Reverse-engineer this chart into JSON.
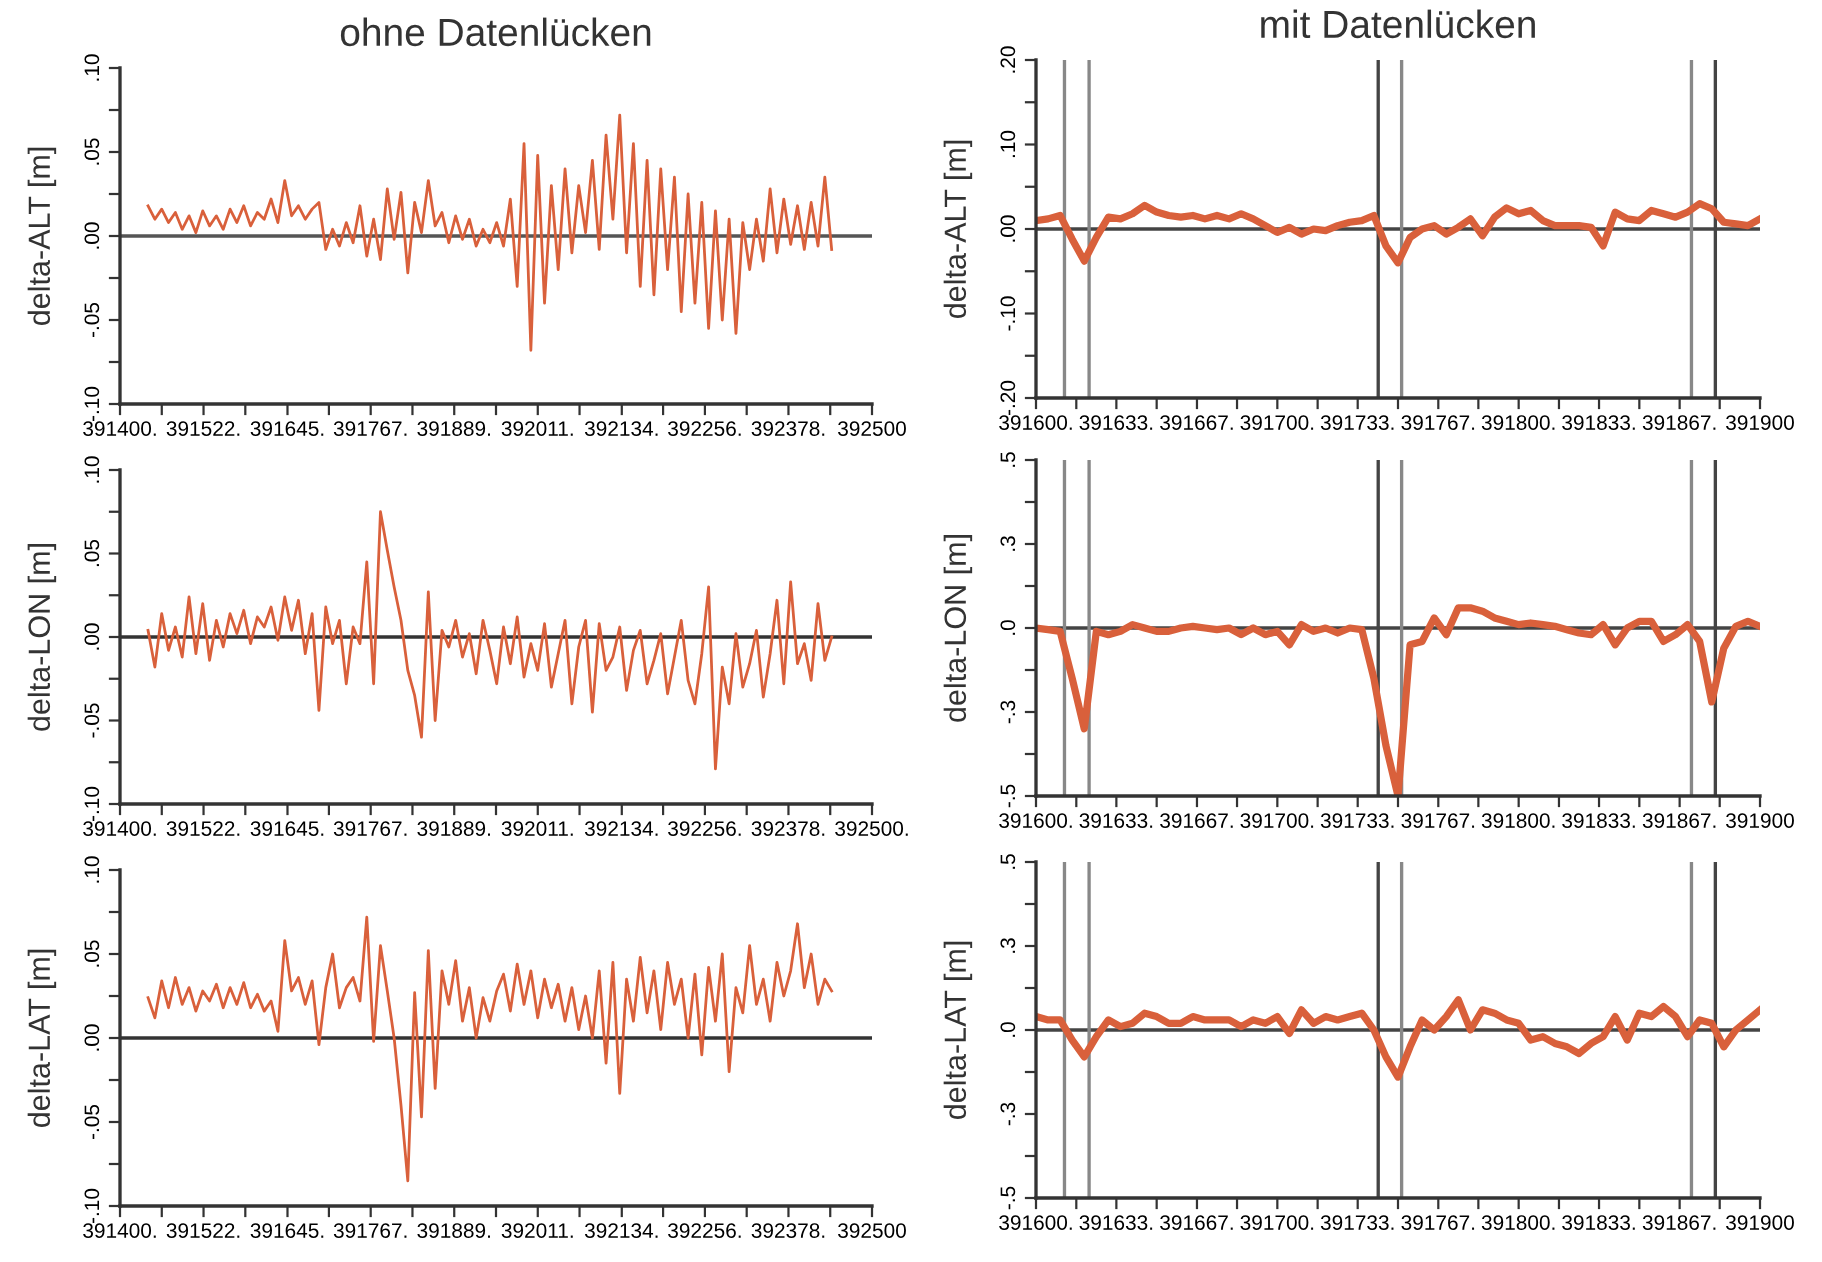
{
  "chart_data": [
    {
      "type": "line",
      "title": "ohne Datenlücken",
      "ylabel": "delta-ALT [m]",
      "xlim": [
        391400,
        392500
      ],
      "ylim": [
        -0.1,
        0.1
      ],
      "xticks": [
        {
          "value": 391400,
          "label": "391400."
        },
        {
          "value": 391461.1,
          "label": null
        },
        {
          "value": 391522.2,
          "label": "391522."
        },
        {
          "value": 391583.3,
          "label": null
        },
        {
          "value": 391645,
          "label": "391645."
        },
        {
          "value": 391705.6,
          "label": null
        },
        {
          "value": 391766.7,
          "label": "391767."
        },
        {
          "value": 391827.8,
          "label": null
        },
        {
          "value": 391888.9,
          "label": "391889."
        },
        {
          "value": 391950,
          "label": null
        },
        {
          "value": 392011.1,
          "label": "392011."
        },
        {
          "value": 392072.2,
          "label": null
        },
        {
          "value": 392134,
          "label": "392134."
        },
        {
          "value": 392194.4,
          "label": null
        },
        {
          "value": 392255.6,
          "label": "392256."
        },
        {
          "value": 392316.7,
          "label": null
        },
        {
          "value": 392377.8,
          "label": "392378."
        },
        {
          "value": 392438.9,
          "label": null
        },
        {
          "value": 392500,
          "label": "392500"
        }
      ],
      "yticks": [
        {
          "value": -0.1,
          "label": "-.10"
        },
        {
          "value": -0.075,
          "label": null
        },
        {
          "value": -0.05,
          "label": "-.05"
        },
        {
          "value": -0.025,
          "label": null
        },
        {
          "value": 0,
          "label": ".00"
        },
        {
          "value": 0.025,
          "label": null
        },
        {
          "value": 0.05,
          "label": ".05"
        },
        {
          "value": 0.075,
          "label": null
        },
        {
          "value": 0.1,
          "label": ".10"
        }
      ],
      "ref_lines": [
        {
          "axis": "y",
          "value": 0,
          "color": "#555555"
        }
      ],
      "grid": false,
      "legend": false,
      "x": [
        391441,
        391451,
        391461,
        391471,
        391481,
        391491,
        391501,
        391511,
        391521,
        391531,
        391541,
        391551,
        391561,
        391571,
        391581,
        391591,
        391601,
        391611,
        391621,
        391631,
        391641,
        391651,
        391661,
        391671,
        391681,
        391691,
        391701,
        391711,
        391721,
        391731,
        391741,
        391751,
        391761,
        391771,
        391781,
        391791,
        391801,
        391811,
        391821,
        391831,
        391841,
        391851,
        391861,
        391871,
        391881,
        391891,
        391901,
        391911,
        391921,
        391931,
        391941,
        391951,
        391961,
        391971,
        391981,
        391991,
        392001,
        392011,
        392021,
        392031,
        392041,
        392051,
        392061,
        392071,
        392081,
        392091,
        392101,
        392111,
        392121,
        392131,
        392141,
        392151,
        392161,
        392171,
        392181,
        392191,
        392201,
        392211,
        392221,
        392231,
        392241,
        392251,
        392261,
        392271,
        392281,
        392291,
        392301,
        392311,
        392321,
        392331,
        392341,
        392351,
        392361,
        392371,
        392381,
        392391,
        392401,
        392411,
        392421,
        392431,
        392441
      ],
      "series": [
        {
          "color": "#d9603b",
          "values": [
            0.018,
            0.01,
            0.016,
            0.008,
            0.014,
            0.004,
            0.012,
            0.002,
            0.015,
            0.006,
            0.012,
            0.004,
            0.016,
            0.008,
            0.018,
            0.006,
            0.014,
            0.01,
            0.022,
            0.008,
            0.033,
            0.012,
            0.018,
            0.01,
            0.016,
            0.02,
            -0.008,
            0.004,
            -0.006,
            0.008,
            -0.004,
            0.018,
            -0.012,
            0.01,
            -0.014,
            0.028,
            -0.002,
            0.026,
            -0.022,
            0.02,
            0.002,
            0.033,
            0.006,
            0.014,
            -0.004,
            0.012,
            -0.002,
            0.01,
            -0.006,
            0.004,
            -0.004,
            0.008,
            -0.006,
            0.022,
            -0.03,
            0.055,
            -0.068,
            0.048,
            -0.04,
            0.03,
            -0.02,
            0.04,
            -0.01,
            0.03,
            0.002,
            0.045,
            -0.008,
            0.06,
            0.01,
            0.072,
            -0.01,
            0.055,
            -0.03,
            0.045,
            -0.035,
            0.04,
            -0.02,
            0.035,
            -0.045,
            0.025,
            -0.04,
            0.02,
            -0.055,
            0.015,
            -0.05,
            0.01,
            -0.058,
            0.008,
            -0.02,
            0.01,
            -0.015,
            0.028,
            -0.01,
            0.022,
            -0.005,
            0.018,
            -0.008,
            0.02,
            -0.006,
            0.035,
            -0.008
          ]
        }
      ]
    },
    {
      "type": "line",
      "title": "mit Datenlücken",
      "ylabel": "delta-ALT [m]",
      "xlim": [
        391600,
        391900
      ],
      "ylim": [
        -0.2,
        0.2
      ],
      "xticks": [
        {
          "value": 391600,
          "label": "391600."
        },
        {
          "value": 391616.7,
          "label": null
        },
        {
          "value": 391633.3,
          "label": "391633."
        },
        {
          "value": 391650,
          "label": null
        },
        {
          "value": 391666.7,
          "label": "391667."
        },
        {
          "value": 391683.3,
          "label": null
        },
        {
          "value": 391700,
          "label": "391700."
        },
        {
          "value": 391716.7,
          "label": null
        },
        {
          "value": 391733.3,
          "label": "391733."
        },
        {
          "value": 391750,
          "label": null
        },
        {
          "value": 391766.7,
          "label": "391767."
        },
        {
          "value": 391783.3,
          "label": null
        },
        {
          "value": 391800,
          "label": "391800."
        },
        {
          "value": 391816.7,
          "label": null
        },
        {
          "value": 391833.3,
          "label": "391833."
        },
        {
          "value": 391850,
          "label": null
        },
        {
          "value": 391866.7,
          "label": "391867."
        },
        {
          "value": 391883.3,
          "label": null
        },
        {
          "value": 391900,
          "label": "391900"
        }
      ],
      "yticks": [
        {
          "value": -0.2,
          "label": "-.20"
        },
        {
          "value": -0.15,
          "label": null
        },
        {
          "value": -0.1,
          "label": "-.10"
        },
        {
          "value": -0.05,
          "label": null
        },
        {
          "value": 0,
          "label": ".00"
        },
        {
          "value": 0.05,
          "label": null
        },
        {
          "value": 0.1,
          "label": ".10"
        },
        {
          "value": 0.15,
          "label": null
        },
        {
          "value": 0.2,
          "label": ".20"
        }
      ],
      "ref_lines": [
        {
          "axis": "y",
          "value": 0,
          "color": "#444444"
        },
        {
          "axis": "x",
          "value": 391611.8,
          "color": "#888888"
        },
        {
          "axis": "x",
          "value": 391622,
          "color": "#888888"
        },
        {
          "axis": "x",
          "value": 391741.8,
          "color": "#444444"
        },
        {
          "axis": "x",
          "value": 391751.5,
          "color": "#888888"
        },
        {
          "axis": "x",
          "value": 391871.6,
          "color": "#888888"
        },
        {
          "axis": "x",
          "value": 391881.5,
          "color": "#444444"
        }
      ],
      "grid": false,
      "legend": false,
      "x": [
        391600,
        391605,
        391610,
        391615,
        391620,
        391625,
        391630,
        391635,
        391640,
        391645,
        391650,
        391655,
        391660,
        391665,
        391670,
        391675,
        391680,
        391685,
        391690,
        391695,
        391700,
        391705,
        391710,
        391715,
        391720,
        391725,
        391730,
        391735,
        391740,
        391745,
        391750,
        391755,
        391760,
        391765,
        391770,
        391775,
        391780,
        391785,
        391790,
        391795,
        391800,
        391805,
        391810,
        391815,
        391820,
        391825,
        391830,
        391835,
        391840,
        391845,
        391850,
        391855,
        391860,
        391865,
        391870,
        391875,
        391880,
        391885,
        391890,
        391895,
        391900
      ],
      "series": [
        {
          "color": "#d9603b",
          "values": [
            0.01,
            0.012,
            0.016,
            -0.012,
            -0.038,
            -0.01,
            0.014,
            0.012,
            0.018,
            0.028,
            0.02,
            0.016,
            0.014,
            0.016,
            0.012,
            0.016,
            0.012,
            0.018,
            0.012,
            0.004,
            -0.004,
            0.002,
            -0.006,
            0.0,
            -0.002,
            0.004,
            0.008,
            0.01,
            0.016,
            -0.02,
            -0.04,
            -0.01,
            0.0,
            0.004,
            -0.006,
            0.002,
            0.012,
            -0.008,
            0.014,
            0.025,
            0.018,
            0.022,
            0.01,
            0.004,
            0.004,
            0.004,
            0.002,
            -0.02,
            0.02,
            0.012,
            0.01,
            0.022,
            0.018,
            0.014,
            0.02,
            0.03,
            0.024,
            0.008,
            0.006,
            0.004,
            0.012
          ]
        }
      ]
    },
    {
      "type": "line",
      "ylabel": "delta-LON [m]",
      "xlim": [
        391400,
        392500
      ],
      "ylim": [
        -0.1,
        0.1
      ],
      "xticks": [
        {
          "value": 391400,
          "label": "391400."
        },
        {
          "value": 391461.1,
          "label": null
        },
        {
          "value": 391522.2,
          "label": "391522."
        },
        {
          "value": 391583.3,
          "label": null
        },
        {
          "value": 391645,
          "label": "391645."
        },
        {
          "value": 391705.6,
          "label": null
        },
        {
          "value": 391766.7,
          "label": "391767."
        },
        {
          "value": 391827.8,
          "label": null
        },
        {
          "value": 391888.9,
          "label": "391889."
        },
        {
          "value": 391950,
          "label": null
        },
        {
          "value": 392011.1,
          "label": "392011."
        },
        {
          "value": 392072.2,
          "label": null
        },
        {
          "value": 392134,
          "label": "392134."
        },
        {
          "value": 392194.4,
          "label": null
        },
        {
          "value": 392255.6,
          "label": "392256."
        },
        {
          "value": 392316.7,
          "label": null
        },
        {
          "value": 392377.8,
          "label": "392378."
        },
        {
          "value": 392438.9,
          "label": null
        },
        {
          "value": 392500,
          "label": "392500."
        }
      ],
      "yticks": [
        {
          "value": -0.1,
          "label": "-.10"
        },
        {
          "value": -0.075,
          "label": null
        },
        {
          "value": -0.05,
          "label": "-.05"
        },
        {
          "value": -0.025,
          "label": null
        },
        {
          "value": 0,
          "label": ".00"
        },
        {
          "value": 0.025,
          "label": null
        },
        {
          "value": 0.05,
          "label": ".05"
        },
        {
          "value": 0.075,
          "label": null
        },
        {
          "value": 0.1,
          "label": ".10"
        }
      ],
      "ref_lines": [
        {
          "axis": "y",
          "value": 0,
          "color": "#333333"
        }
      ],
      "grid": false,
      "legend": false,
      "x": [
        391441,
        391451,
        391461,
        391471,
        391481,
        391491,
        391501,
        391511,
        391521,
        391531,
        391541,
        391551,
        391561,
        391571,
        391581,
        391591,
        391601,
        391611,
        391621,
        391631,
        391641,
        391651,
        391661,
        391671,
        391681,
        391691,
        391701,
        391711,
        391721,
        391731,
        391741,
        391751,
        391761,
        391771,
        391781,
        391791,
        391801,
        391811,
        391821,
        391831,
        391841,
        391851,
        391861,
        391871,
        391881,
        391891,
        391901,
        391911,
        391921,
        391931,
        391941,
        391951,
        391961,
        391971,
        391981,
        391991,
        392001,
        392011,
        392021,
        392031,
        392041,
        392051,
        392061,
        392071,
        392081,
        392091,
        392101,
        392111,
        392121,
        392131,
        392141,
        392151,
        392161,
        392171,
        392181,
        392191,
        392201,
        392211,
        392221,
        392231,
        392241,
        392251,
        392261,
        392271,
        392281,
        392291,
        392301,
        392311,
        392321,
        392331,
        392341,
        392351,
        392361,
        392371,
        392381,
        392391,
        392401,
        392411,
        392421,
        392431,
        392441
      ],
      "series": [
        {
          "color": "#d9603b",
          "values": [
            0.004,
            -0.018,
            0.014,
            -0.008,
            0.006,
            -0.012,
            0.024,
            -0.01,
            0.02,
            -0.014,
            0.01,
            -0.006,
            0.014,
            0.002,
            0.016,
            -0.004,
            0.012,
            0.006,
            0.018,
            -0.002,
            0.024,
            0.004,
            0.022,
            -0.01,
            0.014,
            -0.044,
            0.018,
            -0.004,
            0.01,
            -0.028,
            0.006,
            -0.004,
            0.045,
            -0.028,
            0.075,
            0.052,
            0.03,
            0.01,
            -0.02,
            -0.035,
            -0.06,
            0.027,
            -0.05,
            0.004,
            -0.006,
            0.01,
            -0.012,
            0.002,
            -0.022,
            0.01,
            -0.008,
            -0.028,
            0.006,
            -0.016,
            0.012,
            -0.024,
            -0.004,
            -0.02,
            0.008,
            -0.03,
            -0.01,
            0.01,
            -0.04,
            -0.006,
            0.01,
            -0.045,
            0.008,
            -0.02,
            -0.012,
            0.006,
            -0.032,
            -0.008,
            0.004,
            -0.028,
            -0.014,
            0.002,
            -0.034,
            -0.012,
            0.01,
            -0.026,
            -0.04,
            -0.01,
            0.03,
            -0.079,
            -0.018,
            -0.04,
            0.002,
            -0.03,
            -0.016,
            0.004,
            -0.036,
            -0.01,
            0.022,
            -0.028,
            0.033,
            -0.016,
            -0.004,
            -0.026,
            0.02,
            -0.014,
            0.0
          ]
        }
      ]
    },
    {
      "type": "line",
      "ylabel": "delta-LON [m]",
      "xlim": [
        391600,
        391900
      ],
      "ylim": [
        -0.5,
        0.5
      ],
      "xticks": [
        {
          "value": 391600,
          "label": "391600."
        },
        {
          "value": 391616.7,
          "label": null
        },
        {
          "value": 391633.3,
          "label": "391633."
        },
        {
          "value": 391650,
          "label": null
        },
        {
          "value": 391666.7,
          "label": "391667."
        },
        {
          "value": 391683.3,
          "label": null
        },
        {
          "value": 391700,
          "label": "391700."
        },
        {
          "value": 391716.7,
          "label": null
        },
        {
          "value": 391733.3,
          "label": "391733."
        },
        {
          "value": 391750,
          "label": null
        },
        {
          "value": 391766.7,
          "label": "391767."
        },
        {
          "value": 391783.3,
          "label": null
        },
        {
          "value": 391800,
          "label": "391800."
        },
        {
          "value": 391816.7,
          "label": null
        },
        {
          "value": 391833.3,
          "label": "391833."
        },
        {
          "value": 391850,
          "label": null
        },
        {
          "value": 391866.7,
          "label": "391867."
        },
        {
          "value": 391883.3,
          "label": null
        },
        {
          "value": 391900,
          "label": "391900"
        }
      ],
      "yticks": [
        {
          "value": -0.5,
          "label": "-.5"
        },
        {
          "value": -0.375,
          "label": null
        },
        {
          "value": -0.25,
          "label": "-.3"
        },
        {
          "value": -0.125,
          "label": null
        },
        {
          "value": 0,
          "label": ".0"
        },
        {
          "value": 0.125,
          "label": null
        },
        {
          "value": 0.25,
          "label": ".3"
        },
        {
          "value": 0.375,
          "label": null
        },
        {
          "value": 0.5,
          "label": ".5"
        }
      ],
      "ref_lines": [
        {
          "axis": "y",
          "value": 0,
          "color": "#444444"
        },
        {
          "axis": "x",
          "value": 391611.8,
          "color": "#888888"
        },
        {
          "axis": "x",
          "value": 391622,
          "color": "#888888"
        },
        {
          "axis": "x",
          "value": 391741.8,
          "color": "#444444"
        },
        {
          "axis": "x",
          "value": 391751.5,
          "color": "#888888"
        },
        {
          "axis": "x",
          "value": 391871.6,
          "color": "#888888"
        },
        {
          "axis": "x",
          "value": 391881.5,
          "color": "#444444"
        }
      ],
      "grid": false,
      "legend": false,
      "x": [
        391600,
        391605,
        391610,
        391615,
        391620,
        391625,
        391630,
        391635,
        391640,
        391645,
        391650,
        391655,
        391660,
        391665,
        391670,
        391675,
        391680,
        391685,
        391690,
        391695,
        391700,
        391705,
        391710,
        391715,
        391720,
        391725,
        391730,
        391735,
        391740,
        391745,
        391750,
        391755,
        391760,
        391765,
        391770,
        391775,
        391780,
        391785,
        391790,
        391795,
        391800,
        391805,
        391810,
        391815,
        391820,
        391825,
        391830,
        391835,
        391840,
        391845,
        391850,
        391855,
        391860,
        391865,
        391870,
        391875,
        391880,
        391885,
        391890,
        391895,
        391900
      ],
      "series": [
        {
          "color": "#d9603b",
          "values": [
            0.0,
            -0.005,
            -0.01,
            -0.15,
            -0.3,
            -0.01,
            -0.02,
            -0.01,
            0.01,
            0.0,
            -0.01,
            -0.01,
            0.0,
            0.005,
            0.0,
            -0.005,
            0.0,
            -0.02,
            0.0,
            -0.02,
            -0.01,
            -0.05,
            0.01,
            -0.01,
            0.0,
            -0.015,
            0.0,
            -0.005,
            -0.15,
            -0.35,
            -0.5,
            -0.05,
            -0.04,
            0.03,
            -0.02,
            0.06,
            0.06,
            0.05,
            0.03,
            0.02,
            0.01,
            0.015,
            0.01,
            0.005,
            -0.005,
            -0.015,
            -0.02,
            0.01,
            -0.05,
            0.0,
            0.02,
            0.02,
            -0.04,
            -0.02,
            0.01,
            -0.04,
            -0.22,
            -0.06,
            0.005,
            0.02,
            0.005
          ]
        }
      ]
    },
    {
      "type": "line",
      "ylabel": "delta-LAT [m]",
      "xlim": [
        391400,
        392500
      ],
      "ylim": [
        -0.1,
        0.1
      ],
      "xticks": [
        {
          "value": 391400,
          "label": "391400."
        },
        {
          "value": 391461.1,
          "label": null
        },
        {
          "value": 391522.2,
          "label": "391522."
        },
        {
          "value": 391583.3,
          "label": null
        },
        {
          "value": 391645,
          "label": "391645."
        },
        {
          "value": 391705.6,
          "label": null
        },
        {
          "value": 391766.7,
          "label": "391767."
        },
        {
          "value": 391827.8,
          "label": null
        },
        {
          "value": 391888.9,
          "label": "391889."
        },
        {
          "value": 391950,
          "label": null
        },
        {
          "value": 392011.1,
          "label": "392011."
        },
        {
          "value": 392072.2,
          "label": null
        },
        {
          "value": 392134,
          "label": "392134."
        },
        {
          "value": 392194.4,
          "label": null
        },
        {
          "value": 392255.6,
          "label": "392256."
        },
        {
          "value": 392316.7,
          "label": null
        },
        {
          "value": 392377.8,
          "label": "392378."
        },
        {
          "value": 392438.9,
          "label": null
        },
        {
          "value": 392500,
          "label": "392500"
        }
      ],
      "yticks": [
        {
          "value": -0.1,
          "label": "-.10"
        },
        {
          "value": -0.075,
          "label": null
        },
        {
          "value": -0.05,
          "label": "-.05"
        },
        {
          "value": -0.025,
          "label": null
        },
        {
          "value": 0,
          "label": ".00"
        },
        {
          "value": 0.025,
          "label": null
        },
        {
          "value": 0.05,
          "label": ".05"
        },
        {
          "value": 0.075,
          "label": null
        },
        {
          "value": 0.1,
          "label": ".10"
        }
      ],
      "ref_lines": [
        {
          "axis": "y",
          "value": 0,
          "color": "#333333"
        }
      ],
      "grid": false,
      "legend": false,
      "x": [
        391441,
        391451,
        391461,
        391471,
        391481,
        391491,
        391501,
        391511,
        391521,
        391531,
        391541,
        391551,
        391561,
        391571,
        391581,
        391591,
        391601,
        391611,
        391621,
        391631,
        391641,
        391651,
        391661,
        391671,
        391681,
        391691,
        391701,
        391711,
        391721,
        391731,
        391741,
        391751,
        391761,
        391771,
        391781,
        391791,
        391801,
        391811,
        391821,
        391831,
        391841,
        391851,
        391861,
        391871,
        391881,
        391891,
        391901,
        391911,
        391921,
        391931,
        391941,
        391951,
        391961,
        391971,
        391981,
        391991,
        392001,
        392011,
        392021,
        392031,
        392041,
        392051,
        392061,
        392071,
        392081,
        392091,
        392101,
        392111,
        392121,
        392131,
        392141,
        392151,
        392161,
        392171,
        392181,
        392191,
        392201,
        392211,
        392221,
        392231,
        392241,
        392251,
        392261,
        392271,
        392281,
        392291,
        392301,
        392311,
        392321,
        392331,
        392341,
        392351,
        392361,
        392371,
        392381,
        392391,
        392401,
        392411,
        392421,
        392431,
        392441
      ],
      "series": [
        {
          "color": "#d9603b",
          "values": [
            0.024,
            0.012,
            0.034,
            0.018,
            0.036,
            0.02,
            0.03,
            0.016,
            0.028,
            0.022,
            0.032,
            0.018,
            0.03,
            0.02,
            0.033,
            0.018,
            0.026,
            0.016,
            0.022,
            0.004,
            0.058,
            0.028,
            0.036,
            0.02,
            0.034,
            -0.004,
            0.03,
            0.05,
            0.018,
            0.03,
            0.036,
            0.022,
            0.072,
            -0.002,
            0.055,
            0.028,
            0.0,
            -0.04,
            -0.085,
            0.027,
            -0.047,
            0.052,
            -0.03,
            0.04,
            0.02,
            0.046,
            0.01,
            0.03,
            0.0,
            0.024,
            0.01,
            0.028,
            0.038,
            0.016,
            0.044,
            0.02,
            0.04,
            0.012,
            0.035,
            0.018,
            0.032,
            0.01,
            0.03,
            0.005,
            0.025,
            0.0,
            0.04,
            -0.015,
            0.045,
            -0.033,
            0.035,
            0.01,
            0.048,
            0.015,
            0.04,
            0.005,
            0.045,
            0.02,
            0.035,
            0.0,
            0.038,
            -0.01,
            0.042,
            0.01,
            0.05,
            -0.02,
            0.03,
            0.015,
            0.055,
            0.02,
            0.035,
            0.01,
            0.045,
            0.025,
            0.04,
            0.068,
            0.03,
            0.05,
            0.02,
            0.035,
            0.028
          ]
        }
      ]
    },
    {
      "type": "line",
      "ylabel": "delta-LAT [m]",
      "xlim": [
        391600,
        391900
      ],
      "ylim": [
        -0.5,
        0.5
      ],
      "xticks": [
        {
          "value": 391600,
          "label": "391600."
        },
        {
          "value": 391616.7,
          "label": null
        },
        {
          "value": 391633.3,
          "label": "391633."
        },
        {
          "value": 391650,
          "label": null
        },
        {
          "value": 391666.7,
          "label": "391667."
        },
        {
          "value": 391683.3,
          "label": null
        },
        {
          "value": 391700,
          "label": "391700."
        },
        {
          "value": 391716.7,
          "label": null
        },
        {
          "value": 391733.3,
          "label": "391733."
        },
        {
          "value": 391750,
          "label": null
        },
        {
          "value": 391766.7,
          "label": "391767."
        },
        {
          "value": 391783.3,
          "label": null
        },
        {
          "value": 391800,
          "label": "391800."
        },
        {
          "value": 391816.7,
          "label": null
        },
        {
          "value": 391833.3,
          "label": "391833."
        },
        {
          "value": 391850,
          "label": null
        },
        {
          "value": 391866.7,
          "label": "391867."
        },
        {
          "value": 391883.3,
          "label": null
        },
        {
          "value": 391900,
          "label": "391900"
        }
      ],
      "yticks": [
        {
          "value": -0.5,
          "label": "-.5"
        },
        {
          "value": -0.375,
          "label": null
        },
        {
          "value": -0.25,
          "label": "-.3"
        },
        {
          "value": -0.125,
          "label": null
        },
        {
          "value": 0,
          "label": ".0"
        },
        {
          "value": 0.125,
          "label": null
        },
        {
          "value": 0.25,
          "label": ".3"
        },
        {
          "value": 0.375,
          "label": null
        },
        {
          "value": 0.5,
          "label": ".5"
        }
      ],
      "ref_lines": [
        {
          "axis": "y",
          "value": 0,
          "color": "#444444"
        },
        {
          "axis": "x",
          "value": 391611.8,
          "color": "#888888"
        },
        {
          "axis": "x",
          "value": 391622,
          "color": "#888888"
        },
        {
          "axis": "x",
          "value": 391741.8,
          "color": "#444444"
        },
        {
          "axis": "x",
          "value": 391751.5,
          "color": "#888888"
        },
        {
          "axis": "x",
          "value": 391871.6,
          "color": "#888888"
        },
        {
          "axis": "x",
          "value": 391881.5,
          "color": "#444444"
        }
      ],
      "grid": false,
      "legend": false,
      "x": [
        391600,
        391605,
        391610,
        391615,
        391620,
        391625,
        391630,
        391635,
        391640,
        391645,
        391650,
        391655,
        391660,
        391665,
        391670,
        391675,
        391680,
        391685,
        391690,
        391695,
        391700,
        391705,
        391710,
        391715,
        391720,
        391725,
        391730,
        391735,
        391740,
        391745,
        391750,
        391755,
        391760,
        391765,
        391770,
        391775,
        391780,
        391785,
        391790,
        391795,
        391800,
        391805,
        391810,
        391815,
        391820,
        391825,
        391830,
        391835,
        391840,
        391845,
        391850,
        391855,
        391860,
        391865,
        391870,
        391875,
        391880,
        391885,
        391890,
        391895,
        391900
      ],
      "series": [
        {
          "color": "#d9603b",
          "values": [
            0.04,
            0.03,
            0.03,
            -0.03,
            -0.08,
            -0.02,
            0.03,
            0.01,
            0.02,
            0.05,
            0.04,
            0.02,
            0.02,
            0.04,
            0.03,
            0.03,
            0.03,
            0.01,
            0.03,
            0.02,
            0.04,
            -0.01,
            0.06,
            0.02,
            0.04,
            0.03,
            0.04,
            0.05,
            0.0,
            -0.08,
            -0.14,
            -0.05,
            0.03,
            0.0,
            0.04,
            0.09,
            0.0,
            0.06,
            0.05,
            0.03,
            0.02,
            -0.03,
            -0.02,
            -0.04,
            -0.05,
            -0.07,
            -0.04,
            -0.02,
            0.04,
            -0.03,
            0.05,
            0.04,
            0.07,
            0.04,
            -0.02,
            0.03,
            0.02,
            -0.05,
            0.0,
            0.03,
            0.06
          ]
        }
      ]
    }
  ]
}
